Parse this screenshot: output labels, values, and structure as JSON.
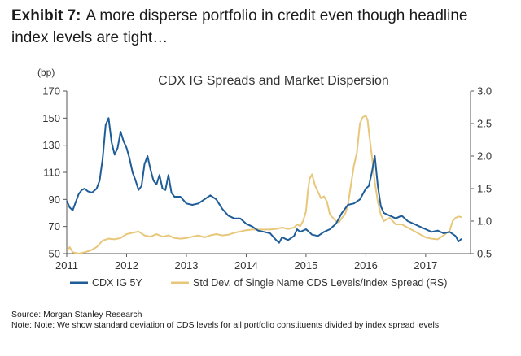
{
  "exhibit": {
    "label": "Exhibit 7:",
    "title": "A more disperse portfolio in credit even though headline index levels are tight…"
  },
  "chart_data": {
    "type": "line",
    "title": "CDX IG Spreads and Market Dispersion",
    "ylabel_left": "(bp)",
    "ylim_left": [
      50,
      170
    ],
    "yticks_left": [
      "50",
      "70",
      "90",
      "110",
      "130",
      "150",
      "170"
    ],
    "ylim_right": [
      0.5,
      3.0
    ],
    "yticks_right": [
      "0.5",
      "1.0",
      "1.5",
      "2.0",
      "2.5",
      "3.0"
    ],
    "xlim": [
      2011,
      2017.75
    ],
    "xticks": [
      "2011",
      "2012",
      "2013",
      "2014",
      "2015",
      "2016",
      "2017"
    ],
    "series": [
      {
        "name": "CDX IG 5Y",
        "axis": "left",
        "color": "#1f5d99",
        "x": [
          2011.0,
          2011.05,
          2011.1,
          2011.15,
          2011.2,
          2011.25,
          2011.3,
          2011.35,
          2011.42,
          2011.5,
          2011.55,
          2011.6,
          2011.65,
          2011.7,
          2011.75,
          2011.8,
          2011.85,
          2011.9,
          2011.95,
          2012.0,
          2012.05,
          2012.1,
          2012.15,
          2012.2,
          2012.25,
          2012.3,
          2012.35,
          2012.4,
          2012.45,
          2012.5,
          2012.55,
          2012.6,
          2012.65,
          2012.7,
          2012.75,
          2012.8,
          2012.9,
          2013.0,
          2013.1,
          2013.2,
          2013.3,
          2013.4,
          2013.5,
          2013.6,
          2013.7,
          2013.8,
          2013.9,
          2014.0,
          2014.1,
          2014.2,
          2014.3,
          2014.4,
          2014.5,
          2014.55,
          2014.6,
          2014.7,
          2014.8,
          2014.85,
          2014.9,
          2015.0,
          2015.1,
          2015.2,
          2015.3,
          2015.4,
          2015.5,
          2015.6,
          2015.7,
          2015.8,
          2015.9,
          2016.0,
          2016.05,
          2016.1,
          2016.15,
          2016.2,
          2016.25,
          2016.3,
          2016.4,
          2016.5,
          2016.6,
          2016.7,
          2016.8,
          2016.9,
          2017.0,
          2017.1,
          2017.2,
          2017.3,
          2017.4,
          2017.5,
          2017.55,
          2017.6
        ],
        "values": [
          89,
          84,
          82,
          88,
          94,
          97,
          98,
          96,
          95,
          98,
          104,
          120,
          145,
          150,
          132,
          123,
          128,
          140,
          133,
          128,
          120,
          110,
          104,
          97,
          100,
          116,
          122,
          112,
          104,
          101,
          108,
          98,
          97,
          108,
          95,
          92,
          92,
          87,
          86,
          87,
          90,
          93,
          90,
          83,
          78,
          76,
          76,
          72,
          70,
          67,
          66,
          65,
          60,
          58,
          62,
          60,
          63,
          68,
          66,
          68,
          64,
          63,
          66,
          68,
          72,
          80,
          86,
          87,
          90,
          98,
          100,
          110,
          122,
          100,
          85,
          80,
          78,
          76,
          78,
          74,
          72,
          70,
          68,
          66,
          67,
          65,
          66,
          63,
          59,
          61
        ]
      },
      {
        "name": "Std Dev. of Single Name CDS Levels/Index Spread (RS)",
        "axis": "right",
        "color": "#e8c77b",
        "x": [
          2011.0,
          2011.05,
          2011.1,
          2011.2,
          2011.3,
          2011.4,
          2011.5,
          2011.6,
          2011.7,
          2011.8,
          2011.9,
          2012.0,
          2012.1,
          2012.2,
          2012.3,
          2012.4,
          2012.5,
          2012.6,
          2012.7,
          2012.8,
          2012.9,
          2013.0,
          2013.1,
          2013.2,
          2013.3,
          2013.4,
          2013.5,
          2013.6,
          2013.7,
          2013.8,
          2013.9,
          2014.0,
          2014.1,
          2014.2,
          2014.3,
          2014.4,
          2014.5,
          2014.6,
          2014.7,
          2014.8,
          2014.85,
          2014.9,
          2014.95,
          2015.0,
          2015.03,
          2015.06,
          2015.1,
          2015.15,
          2015.2,
          2015.25,
          2015.3,
          2015.35,
          2015.4,
          2015.45,
          2015.5,
          2015.55,
          2015.6,
          2015.65,
          2015.7,
          2015.75,
          2015.8,
          2015.85,
          2015.9,
          2015.95,
          2016.0,
          2016.03,
          2016.06,
          2016.1,
          2016.15,
          2016.2,
          2016.25,
          2016.3,
          2016.4,
          2016.5,
          2016.6,
          2016.7,
          2016.8,
          2016.9,
          2017.0,
          2017.1,
          2017.2,
          2017.3,
          2017.4,
          2017.45,
          2017.5,
          2017.55,
          2017.6
        ],
        "values": [
          0.55,
          0.6,
          0.52,
          0.5,
          0.52,
          0.55,
          0.6,
          0.7,
          0.73,
          0.72,
          0.74,
          0.8,
          0.82,
          0.84,
          0.78,
          0.76,
          0.8,
          0.76,
          0.78,
          0.74,
          0.73,
          0.74,
          0.76,
          0.78,
          0.75,
          0.78,
          0.8,
          0.78,
          0.79,
          0.82,
          0.84,
          0.86,
          0.87,
          0.87,
          0.87,
          0.87,
          0.88,
          0.9,
          0.88,
          0.9,
          0.95,
          0.92,
          1.0,
          1.15,
          1.45,
          1.65,
          1.72,
          1.55,
          1.45,
          1.35,
          1.38,
          1.3,
          1.1,
          1.05,
          1.0,
          0.98,
          1.05,
          1.1,
          1.25,
          1.55,
          1.85,
          2.05,
          2.5,
          2.6,
          2.62,
          2.55,
          2.3,
          2.0,
          1.6,
          1.3,
          1.1,
          1.0,
          1.05,
          0.95,
          0.95,
          0.9,
          0.85,
          0.8,
          0.75,
          0.73,
          0.72,
          0.78,
          0.85,
          1.0,
          1.05,
          1.07,
          1.06
        ]
      }
    ],
    "legend_position": "bottom"
  },
  "footer": {
    "source": "Source: Morgan Stanley Research",
    "note": "Note: Note: We show standard deviation of CDS levels for all portfolio constituents divided by index spread levels"
  }
}
